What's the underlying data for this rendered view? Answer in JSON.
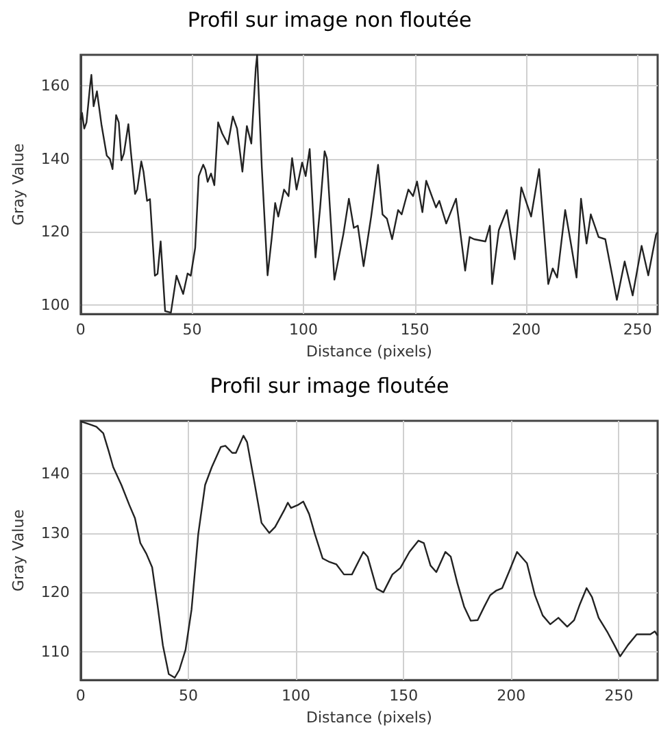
{
  "chart_data": [
    {
      "type": "line",
      "title": "Profil sur image non floutée",
      "xlabel": "Distance (pixels)",
      "ylabel": "Gray Value",
      "color": "#222222",
      "marker": "none",
      "grid": true,
      "xlim": [
        0,
        259
      ],
      "ylim": [
        97.5,
        168.5
      ],
      "xticks": [
        0,
        50,
        100,
        150,
        200,
        250
      ],
      "yticks": [
        100,
        120,
        140,
        160
      ],
      "x": [
        0,
        0.6,
        1.6,
        2.6,
        4.2,
        4.8,
        5.8,
        7.3,
        9.3,
        11.7,
        13.1,
        14.3,
        15.9,
        17.1,
        18.3,
        19.4,
        21.4,
        22.4,
        24.4,
        25.4,
        27.2,
        28.2,
        29.8,
        31.1,
        33.3,
        34.5,
        35.9,
        37.9,
        40.5,
        43,
        46,
        48,
        49.4,
        51.4,
        53,
        55,
        56,
        57,
        58.5,
        60,
        61.7,
        63.5,
        66.1,
        68.3,
        70.2,
        72.6,
        74.6,
        76.6,
        78.6,
        79.2,
        81.3,
        83.9,
        85.7,
        87.3,
        88.7,
        91.3,
        93.3,
        94.9,
        96.9,
        99.4,
        101,
        102.8,
        105.4,
        107.5,
        109.5,
        110.5,
        113.9,
        117.9,
        120.4,
        122.6,
        124.4,
        127,
        130.4,
        133.5,
        135.5,
        137.5,
        139.8,
        142.5,
        144.1,
        147.1,
        149.2,
        151,
        153.4,
        155.1,
        159.5,
        161,
        164.1,
        168.5,
        172.6,
        174.6,
        176.6,
        181.7,
        183.7,
        184.7,
        187.7,
        191.3,
        194.8,
        197.8,
        202.2,
        205.8,
        209.9,
        211.9,
        213.9,
        217.5,
        220.4,
        222.6,
        224.6,
        227.1,
        229,
        232.5,
        235.5,
        240.7,
        244.2,
        247.8,
        251.8,
        254.8,
        258.3,
        259
      ],
      "values": [
        150.7,
        152.6,
        148.3,
        150,
        160,
        163,
        154.4,
        158.5,
        149.5,
        140.9,
        140,
        137.2,
        152,
        150,
        139.6,
        141.5,
        149.5,
        142.7,
        130.4,
        131.6,
        139.3,
        136.5,
        128.5,
        129,
        108,
        108.5,
        117.4,
        98.3,
        97.9,
        108,
        103,
        108.6,
        108,
        115.6,
        135.3,
        138.4,
        137,
        133.7,
        136,
        132.8,
        150,
        147,
        144,
        151.6,
        148.3,
        136.5,
        149,
        144.2,
        164.9,
        168.4,
        137.8,
        108.1,
        118,
        127.9,
        124.2,
        131.6,
        129.8,
        140.2,
        131.6,
        139,
        135.3,
        142.7,
        113,
        126.7,
        142.1,
        140.2,
        106.9,
        119.3,
        129.1,
        121.1,
        121.7,
        110.6,
        124.2,
        138.4,
        124.8,
        123.6,
        118,
        126,
        124.8,
        131.6,
        129.8,
        133.8,
        125.4,
        134,
        126.7,
        128.5,
        122.3,
        129.1,
        109.4,
        118.6,
        118,
        117.4,
        121.7,
        105.7,
        120.5,
        126,
        112.5,
        132.2,
        124.2,
        137.2,
        105.7,
        110,
        107.5,
        126,
        115.6,
        107.5,
        129.1,
        116.8,
        124.8,
        118.6,
        118,
        101.4,
        111.9,
        102.6,
        116.2,
        108.1,
        119.3,
        120
      ]
    },
    {
      "type": "line",
      "title": "Profil sur image floutée",
      "xlabel": "Distance (pixels)",
      "ylabel": "Gray Value",
      "color": "#222222",
      "marker": "none",
      "grid": true,
      "xlim": [
        0,
        268
      ],
      "ylim": [
        105.2,
        148.9
      ],
      "xticks": [
        0,
        50,
        100,
        150,
        200,
        250
      ],
      "yticks": [
        110,
        120,
        130,
        140
      ],
      "x": [
        0,
        4.2,
        7.3,
        10.5,
        13,
        15.1,
        18.9,
        22.6,
        25.2,
        27.7,
        30.5,
        33.2,
        35.7,
        38.2,
        40.9,
        43.7,
        45.8,
        48.7,
        51.5,
        54.6,
        57.8,
        60.9,
        65.1,
        67.2,
        70.4,
        72.1,
        75.6,
        77.3,
        80.9,
        84,
        87.6,
        90.3,
        94.5,
        96.2,
        97.7,
        100.8,
        103.4,
        106.1,
        108.8,
        112.4,
        115.6,
        118.8,
        122.3,
        126,
        131.3,
        133.3,
        137.5,
        140.6,
        144.8,
        148.5,
        152.7,
        156.9,
        159.4,
        162.5,
        165.2,
        169.4,
        171.9,
        175,
        178.1,
        181.2,
        184.4,
        187.5,
        190.2,
        193.1,
        195.8,
        198.9,
        202.7,
        207.3,
        211,
        214.6,
        218.1,
        221.9,
        226,
        229.2,
        231.9,
        235,
        237.5,
        240.6,
        244.8,
        247.9,
        250.6,
        254.2,
        258.3,
        264.6,
        266.7,
        268
      ],
      "values": [
        148.8,
        148.3,
        147.9,
        146.8,
        143.8,
        141.1,
        138.1,
        134.7,
        132.5,
        128.3,
        126.5,
        124.2,
        117.8,
        111,
        106.2,
        105.6,
        106.9,
        110.3,
        117.1,
        129.8,
        138.1,
        141.1,
        144.5,
        144.7,
        143.5,
        143.5,
        146.4,
        145.3,
        138.1,
        131.7,
        130,
        131,
        133.8,
        135.1,
        134.2,
        134.7,
        135.3,
        133.2,
        129.8,
        125.7,
        125.1,
        124.7,
        123,
        123,
        126.8,
        126,
        120.6,
        120,
        123,
        124.1,
        126.8,
        128.7,
        128.3,
        124.5,
        123.4,
        126.8,
        126,
        121.5,
        117.6,
        115.2,
        115.3,
        117.6,
        119.5,
        120.3,
        120.7,
        123.4,
        126.8,
        124.9,
        119.5,
        116.1,
        114.6,
        115.7,
        114.2,
        115.3,
        118,
        120.7,
        119.2,
        115.7,
        113.2,
        111.1,
        109.2,
        111.1,
        112.9,
        112.9,
        113.4,
        112.7
      ]
    }
  ]
}
